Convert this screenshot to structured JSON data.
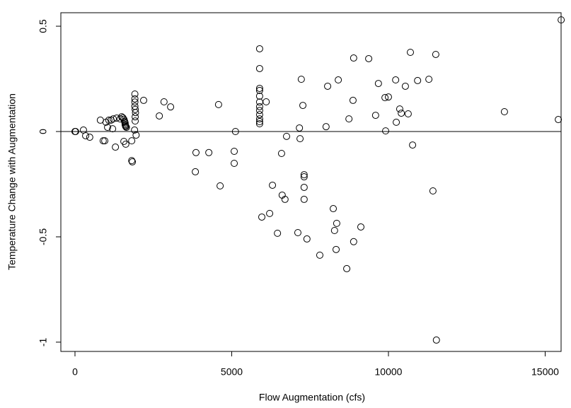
{
  "chart_data": {
    "type": "scatter",
    "x_label": "Flow Augmentation (cfs)",
    "y_label": "Temperature Change with Augmentation",
    "xlim": [
      -451,
      15508
    ],
    "ylim": [
      -1.044,
      0.564
    ],
    "xticks": [
      0,
      5000,
      10000,
      15000
    ],
    "yticks": [
      -1.0,
      -0.5,
      0.0,
      0.5
    ],
    "hline": 0,
    "color": "#000000",
    "x": [
      0,
      20,
      270,
      340,
      470,
      810,
      900,
      950,
      990,
      1040,
      1080,
      1150,
      1200,
      1220,
      1290,
      1330,
      1440,
      1490,
      1530,
      1560,
      1580,
      1590,
      1600,
      1600,
      1610,
      1620,
      1640,
      1560,
      1620,
      1810,
      1810,
      1830,
      1910,
      1910,
      1910,
      1910,
      1920,
      1930,
      1920,
      1920,
      1900,
      1950,
      2190,
      2690,
      2840,
      3050,
      3860,
      3840,
      4270,
      4580,
      4630,
      5080,
      5080,
      5120,
      5890,
      5890,
      5890,
      5890,
      5890,
      5890,
      5890,
      5890,
      5890,
      5890,
      5890,
      5890,
      5960,
      6100,
      6210,
      6300,
      6460,
      6590,
      6610,
      6700,
      6750,
      7110,
      7160,
      7180,
      7220,
      7270,
      7310,
      7310,
      7310,
      7310,
      7400,
      7810,
      8010,
      8060,
      8240,
      8280,
      8330,
      8350,
      8400,
      8670,
      8740,
      8870,
      8890,
      8890,
      9120,
      9370,
      9590,
      9680,
      9890,
      9910,
      10000,
      10230,
      10250,
      10360,
      10410,
      10540,
      10630,
      10700,
      10770,
      10930,
      11290,
      11420,
      11510,
      11530,
      13700,
      15420,
      15510
    ],
    "y": [
      0.0,
      0.0,
      0.007,
      -0.02,
      -0.027,
      0.054,
      -0.044,
      -0.044,
      0.044,
      0.02,
      0.054,
      0.054,
      0.013,
      0.06,
      -0.074,
      0.064,
      0.06,
      0.07,
      0.065,
      0.058,
      0.05,
      0.045,
      0.04,
      0.033,
      0.028,
      0.024,
      0.02,
      -0.047,
      -0.06,
      -0.044,
      -0.138,
      -0.144,
      0.178,
      0.155,
      0.14,
      0.12,
      0.105,
      0.09,
      0.07,
      0.05,
      0.007,
      -0.017,
      0.148,
      0.074,
      0.141,
      0.117,
      -0.1,
      -0.191,
      -0.1,
      0.128,
      -0.258,
      -0.094,
      -0.151,
      0.0,
      0.393,
      0.299,
      0.205,
      0.195,
      0.168,
      0.14,
      0.118,
      0.1,
      0.08,
      0.06,
      0.047,
      0.037,
      -0.406,
      0.141,
      -0.389,
      -0.255,
      -0.483,
      -0.104,
      -0.302,
      -0.322,
      -0.023,
      -0.48,
      0.017,
      -0.034,
      0.248,
      0.124,
      -0.205,
      -0.215,
      -0.265,
      -0.322,
      -0.51,
      -0.587,
      0.023,
      0.215,
      -0.366,
      -0.47,
      -0.56,
      -0.436,
      0.245,
      -0.651,
      0.06,
      0.148,
      0.349,
      -0.523,
      -0.453,
      0.346,
      0.077,
      0.228,
      0.161,
      0.003,
      0.164,
      0.245,
      0.044,
      0.107,
      0.087,
      0.215,
      0.084,
      0.376,
      -0.064,
      0.242,
      0.248,
      -0.282,
      0.366,
      -0.99,
      0.094,
      0.057,
      0.53
    ]
  }
}
